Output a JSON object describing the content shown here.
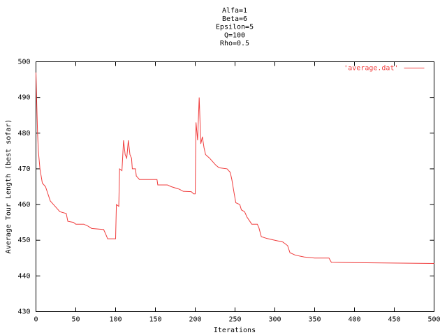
{
  "chart_data": {
    "type": "line",
    "title_lines": [
      "Alfa=1",
      "Beta=6",
      "Epsilon=5",
      "Q=100",
      "Rho=0.5"
    ],
    "x_label": "Iterations",
    "y_label": "Average Tour Length (best sofar)",
    "xlim": [
      0,
      500
    ],
    "xticks": [
      0,
      50,
      100,
      150,
      200,
      250,
      300,
      350,
      400,
      450,
      500
    ],
    "ylim": [
      430,
      500
    ],
    "yticks": [
      430,
      440,
      450,
      460,
      470,
      480,
      490,
      500
    ],
    "legend": "top right",
    "x": [
      0,
      1,
      2,
      3,
      5,
      8,
      12,
      15,
      18,
      22,
      26,
      30,
      38,
      40,
      47,
      50,
      60,
      65,
      70,
      85,
      88,
      90,
      100,
      101,
      104,
      105,
      108,
      110,
      112,
      114,
      116,
      118,
      120,
      121,
      125,
      126,
      130,
      152,
      153,
      165,
      170,
      180,
      185,
      195,
      198,
      200,
      201,
      203,
      205,
      207,
      209,
      211,
      213,
      218,
      222,
      226,
      230,
      240,
      244,
      246,
      249,
      251,
      256,
      258,
      262,
      265,
      268,
      271,
      278,
      280,
      283,
      290,
      300,
      310,
      316,
      319,
      324,
      326,
      337,
      350,
      368,
      371,
      405,
      500
    ],
    "series": [
      {
        "name": "'average.dat'",
        "color": "#f03c3c",
        "values": [
          497,
          488,
          480,
          475,
          470,
          466,
          465,
          463,
          461,
          460,
          459,
          458,
          457.5,
          455.3,
          455,
          454.5,
          454.5,
          454,
          453.3,
          453,
          451.5,
          450.4,
          450.4,
          460,
          459.5,
          470,
          469.5,
          478,
          474,
          473,
          478,
          474,
          473,
          470,
          470,
          468,
          467,
          467,
          465.5,
          465.5,
          465,
          464.3,
          463.7,
          463.6,
          463,
          463,
          483,
          478,
          490,
          477,
          479,
          476,
          474,
          473,
          472,
          471,
          470.3,
          470,
          469,
          467,
          463,
          460.5,
          460,
          458.5,
          458,
          456.5,
          455.5,
          454.5,
          454.5,
          453.5,
          451,
          450.5,
          450,
          449.5,
          448.5,
          446.5,
          446,
          445.8,
          445.3,
          445,
          445,
          443.8,
          443.7,
          443.5
        ]
      }
    ]
  }
}
